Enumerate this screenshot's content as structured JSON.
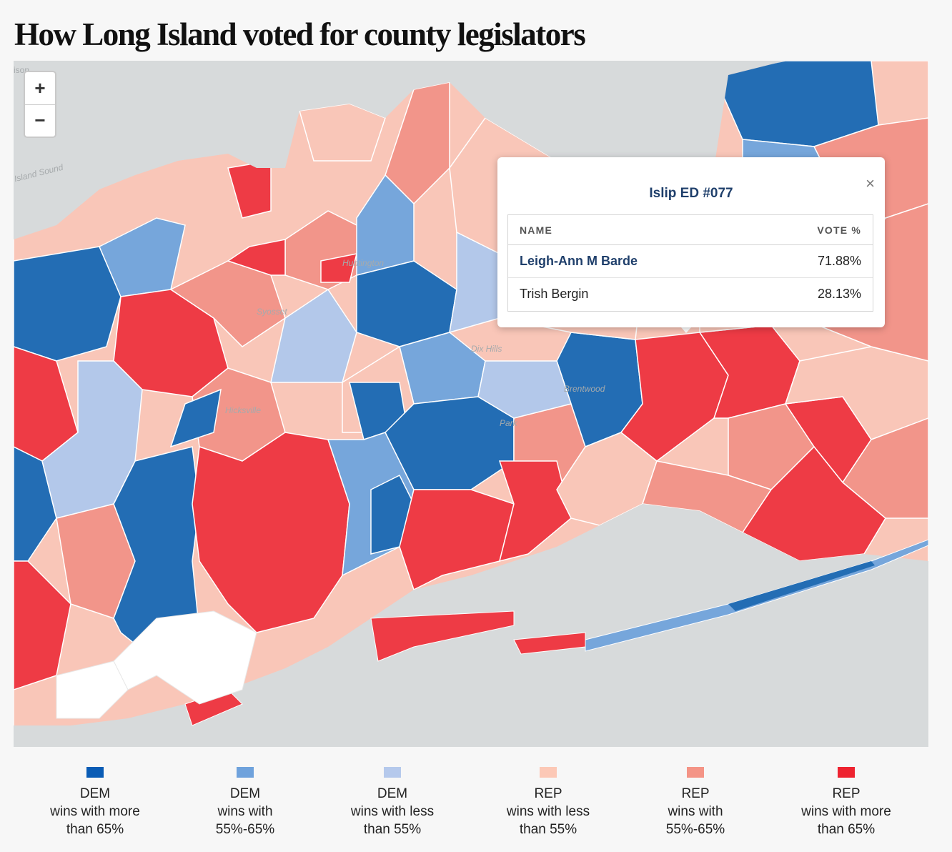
{
  "title": "How Long Island voted for county legislators",
  "map": {
    "background_labels": {
      "top_left": "ison",
      "sound": "Island Sound",
      "places": [
        "Huntington",
        "Syosset",
        "Dix Hills",
        "Brentwood",
        "Hicksville",
        "Park"
      ]
    },
    "colors": {
      "water": "#d7dadb",
      "dem_strong": "#236db4",
      "dem_mid": "#76a6db",
      "dem_weak": "#b3c8ea",
      "rep_weak": "#f9c6b8",
      "rep_mid": "#f2958a",
      "rep_strong": "#ee3b45",
      "no_data": "#ffffff",
      "gray": "#aaaaaa"
    }
  },
  "zoom": {
    "in_label": "+",
    "out_label": "−"
  },
  "popup": {
    "title": "Islip ED #077",
    "close_label": "×",
    "columns": {
      "name": "NAME",
      "vote": "VOTE %"
    },
    "rows": [
      {
        "name": "Leigh-Ann M Barde",
        "vote": "71.88%"
      },
      {
        "name": "Trish Bergin",
        "vote": "28.13%"
      }
    ]
  },
  "legend": [
    {
      "color": "#0a5cb5",
      "lines": [
        "DEM",
        "wins with more",
        "than 65%"
      ]
    },
    {
      "color": "#6fa2dc",
      "lines": [
        "DEM",
        "wins with",
        "55%-65%"
      ]
    },
    {
      "color": "#b5c9ec",
      "lines": [
        "DEM",
        "wins with less",
        "than 55%"
      ]
    },
    {
      "color": "#fcc8b6",
      "lines": [
        "REP",
        "wins with less",
        "than 55%"
      ]
    },
    {
      "color": "#f49486",
      "lines": [
        "REP",
        "wins with",
        "55%-65%"
      ]
    },
    {
      "color": "#ee2330",
      "lines": [
        "REP",
        "wins with more",
        "than 65%"
      ]
    }
  ]
}
